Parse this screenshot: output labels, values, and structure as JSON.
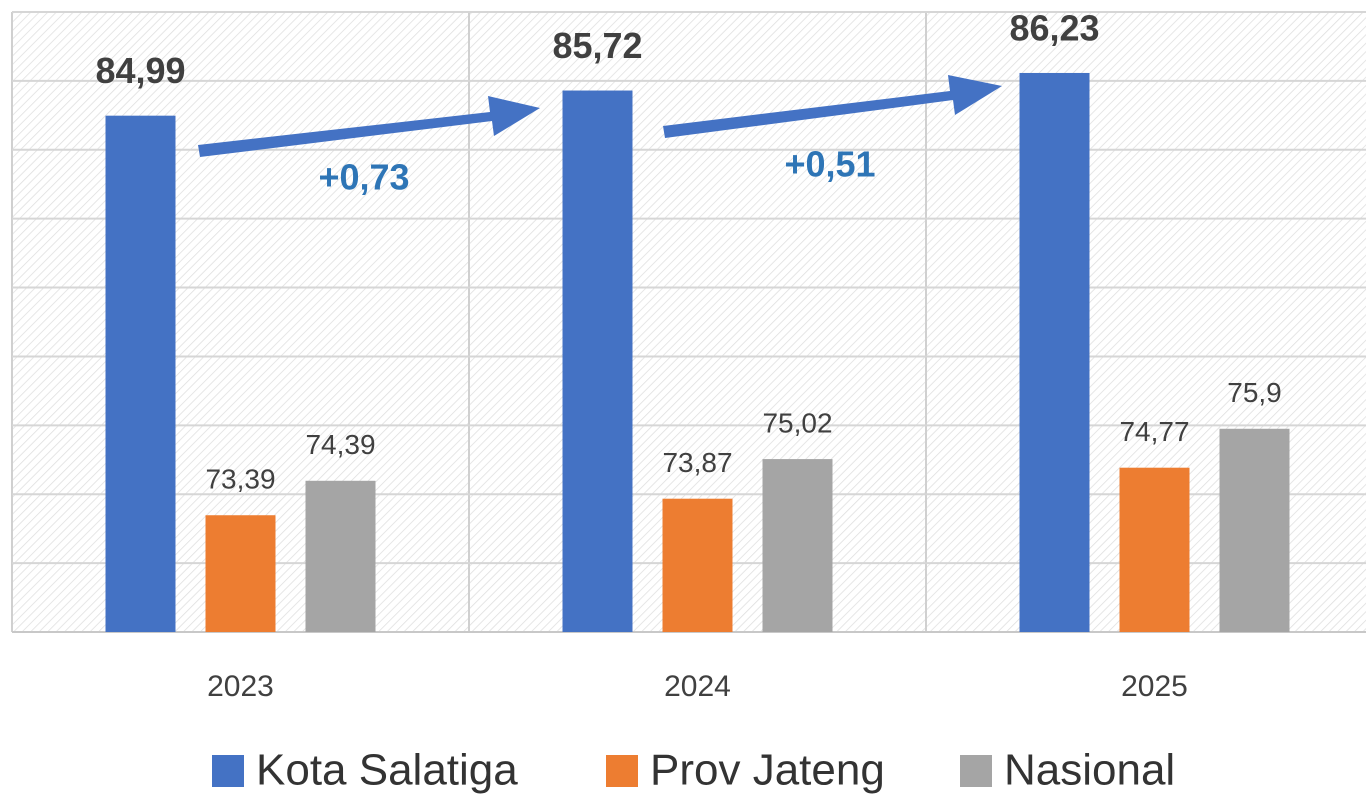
{
  "chart_data": {
    "type": "bar",
    "categories": [
      "2023",
      "2024",
      "2025"
    ],
    "series": [
      {
        "name": "Kota Salatiga",
        "color": "#4472c4",
        "values": [
          84.99,
          85.72,
          86.23
        ],
        "value_labels": [
          "84,99",
          "85,72",
          "86,23"
        ]
      },
      {
        "name": "Prov Jateng",
        "color": "#ed7d31",
        "values": [
          73.39,
          73.87,
          74.77
        ],
        "value_labels": [
          "73,39",
          "73,87",
          "74,77"
        ]
      },
      {
        "name": "Nasional",
        "color": "#a5a5a5",
        "values": [
          74.39,
          75.02,
          75.9
        ],
        "value_labels": [
          "74,39",
          "75,02",
          "75,9"
        ]
      }
    ],
    "ylim": [
      70,
      88
    ],
    "yticks": [
      70,
      72,
      74,
      76,
      78,
      80,
      82,
      84,
      86,
      88
    ],
    "grid": true,
    "annotations": [
      "+0,73",
      "+0,51"
    ]
  }
}
